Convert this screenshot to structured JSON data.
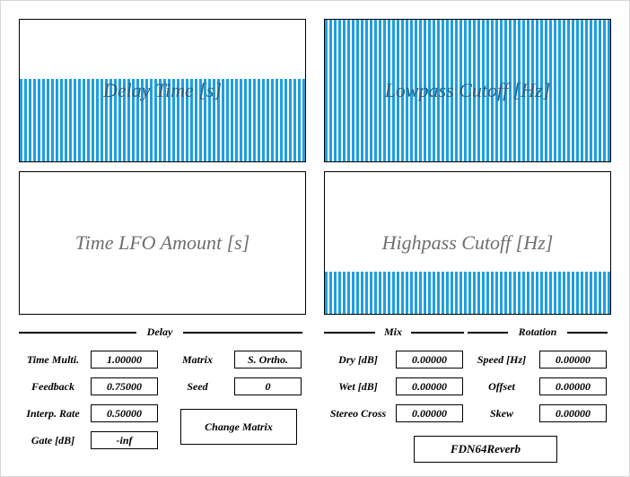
{
  "bars": {
    "delay_time": {
      "label": "Delay Time [s]",
      "fill_fraction": 0.58
    },
    "lowpass_cutoff": {
      "label": "Lowpass Cutoff [Hz]",
      "fill_fraction": 1.0
    },
    "time_lfo_amount": {
      "label": "Time LFO Amount [s]",
      "fill_fraction": 0.0
    },
    "highpass_cutoff": {
      "label": "Highpass Cutoff [Hz]",
      "fill_fraction": 0.3
    }
  },
  "sections": {
    "delay": "Delay",
    "mix": "Mix",
    "rotation": "Rotation"
  },
  "delay": {
    "time_multi": {
      "label": "Time Multi.",
      "value": "1.00000"
    },
    "feedback": {
      "label": "Feedback",
      "value": "0.75000"
    },
    "interp_rate": {
      "label": "Interp. Rate",
      "value": "0.50000"
    },
    "gate": {
      "label": "Gate [dB]",
      "value": "-inf"
    },
    "matrix": {
      "label": "Matrix",
      "value": "S. Ortho."
    },
    "seed": {
      "label": "Seed",
      "value": "0"
    },
    "change_matrix_label": "Change Matrix"
  },
  "mix": {
    "dry": {
      "label": "Dry [dB]",
      "value": "0.00000"
    },
    "wet": {
      "label": "Wet [dB]",
      "value": "0.00000"
    },
    "stereo_cross": {
      "label": "Stereo Cross",
      "value": "0.00000"
    }
  },
  "rotation": {
    "speed": {
      "label": "Speed [Hz]",
      "value": "0.00000"
    },
    "offset": {
      "label": "Offset",
      "value": "0.00000"
    },
    "skew": {
      "label": "Skew",
      "value": "0.00000"
    }
  },
  "plugin_name": "FDN64Reverb",
  "colors": {
    "fill": "#1e9fdf",
    "border": "#000000",
    "label": "#6f6f6f"
  }
}
